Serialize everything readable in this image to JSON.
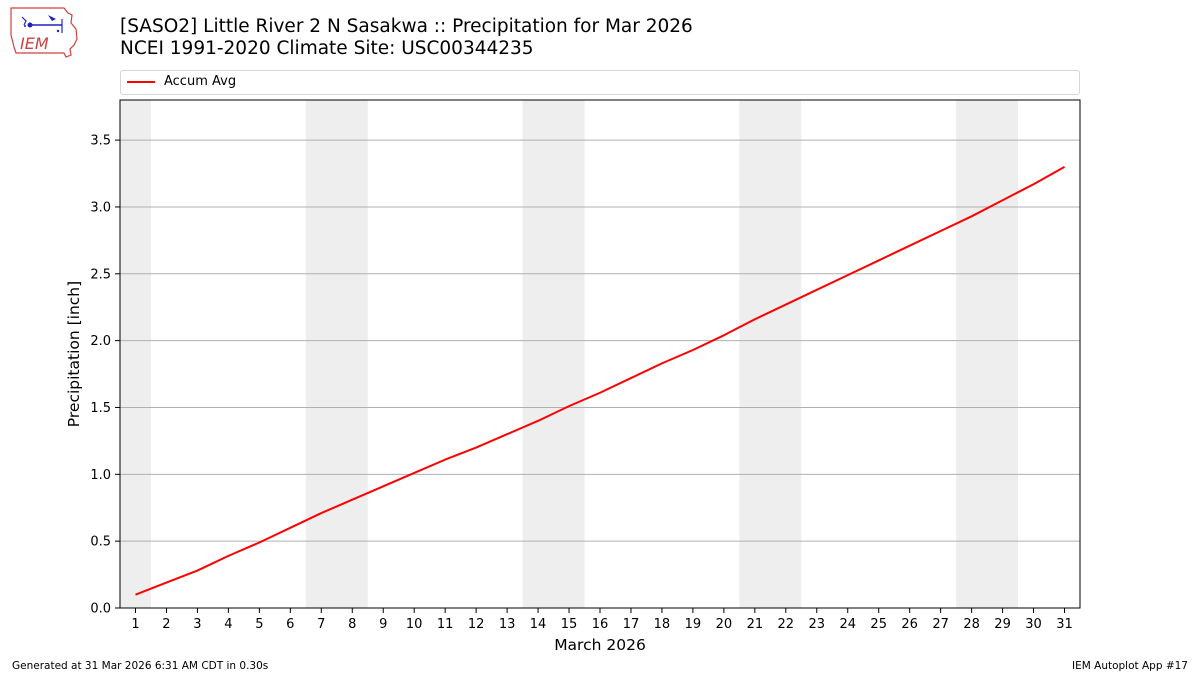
{
  "header": {
    "title_line1": "[SASO2] Little River 2 N Sasakwa :: Precipitation for Mar 2026",
    "title_line2": "NCEI 1991-2020 Climate Site: USC00344235"
  },
  "logo": {
    "text": "IEM",
    "icon": "iem-logo-icon"
  },
  "footer": {
    "generated": "Generated at 31 Mar 2026 6:31 AM CDT in 0.30s",
    "app": "IEM Autoplot App #17"
  },
  "chart_data": {
    "type": "line",
    "xlabel": "March 2026",
    "ylabel": "Precipitation [inch]",
    "xlim": [
      0.5,
      31.5
    ],
    "ylim": [
      0,
      3.8
    ],
    "yticks": [
      0.0,
      0.5,
      1.0,
      1.5,
      2.0,
      2.5,
      3.0,
      3.5
    ],
    "ytick_labels": [
      "0.0",
      "0.5",
      "1.0",
      "1.5",
      "2.0",
      "2.5",
      "3.0",
      "3.5"
    ],
    "xticks": [
      1,
      2,
      3,
      4,
      5,
      6,
      7,
      8,
      9,
      10,
      11,
      12,
      13,
      14,
      15,
      16,
      17,
      18,
      19,
      20,
      21,
      22,
      23,
      24,
      25,
      26,
      27,
      28,
      29,
      30,
      31
    ],
    "grid": "horizontal",
    "legend_placement": "top",
    "weekend_shading": [
      [
        0.5,
        1.5
      ],
      [
        6.5,
        8.5
      ],
      [
        13.5,
        15.5
      ],
      [
        20.5,
        22.5
      ],
      [
        27.5,
        29.5
      ]
    ],
    "colors": {
      "series": "#ff0000",
      "weekend": "#eeeeee",
      "grid": "#b0b0b0"
    },
    "series": [
      {
        "name": "Accum Avg",
        "x": [
          1,
          2,
          3,
          4,
          5,
          6,
          7,
          8,
          9,
          10,
          11,
          12,
          13,
          14,
          15,
          16,
          17,
          18,
          19,
          20,
          21,
          22,
          23,
          24,
          25,
          26,
          27,
          28,
          29,
          30,
          31
        ],
        "values": [
          0.1,
          0.19,
          0.28,
          0.39,
          0.49,
          0.6,
          0.71,
          0.81,
          0.91,
          1.01,
          1.11,
          1.2,
          1.3,
          1.4,
          1.51,
          1.61,
          1.72,
          1.83,
          1.93,
          2.04,
          2.16,
          2.27,
          2.38,
          2.49,
          2.6,
          2.71,
          2.82,
          2.93,
          3.05,
          3.17,
          3.3
        ]
      }
    ]
  }
}
